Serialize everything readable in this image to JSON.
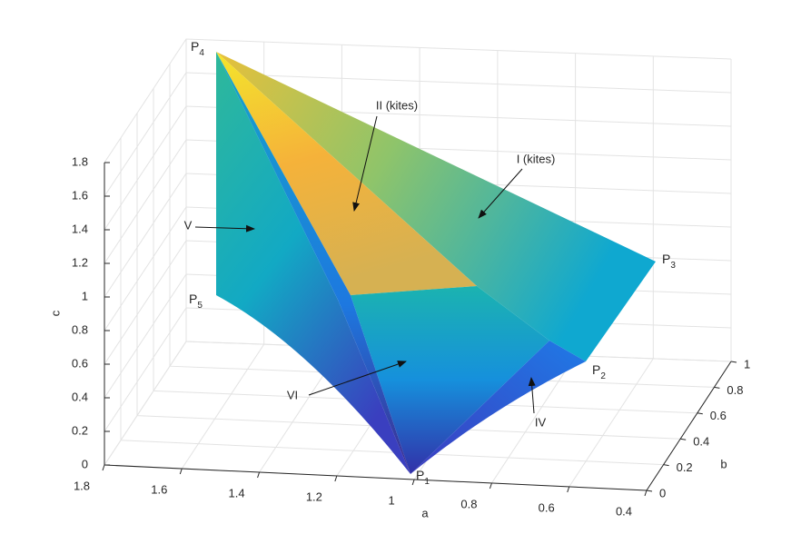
{
  "chart_data": {
    "type": "surface3d",
    "xlabel": "a",
    "ylabel": "b",
    "zlabel": "c",
    "xlim": [
      0.4,
      1.8
    ],
    "ylim": [
      0,
      1
    ],
    "zlim": [
      0,
      1.8
    ],
    "xticks": [
      1.8,
      1.6,
      1.4,
      1.2,
      1,
      0.8,
      0.6,
      0.4
    ],
    "yticks": [
      0,
      0.2,
      0.4,
      0.6,
      0.8,
      1
    ],
    "zticks": [
      0,
      0.2,
      0.4,
      0.6,
      0.8,
      1,
      1.2,
      1.4,
      1.6,
      1.8
    ],
    "grid": true,
    "point_labels": [
      {
        "text": "P",
        "sub": "1"
      },
      {
        "text": "P",
        "sub": "2"
      },
      {
        "text": "P",
        "sub": "3"
      },
      {
        "text": "P",
        "sub": "4"
      },
      {
        "text": "P",
        "sub": "5"
      }
    ],
    "region_labels": [
      "I (kites)",
      "II (kites)",
      "IV",
      "V",
      "VI"
    ]
  }
}
